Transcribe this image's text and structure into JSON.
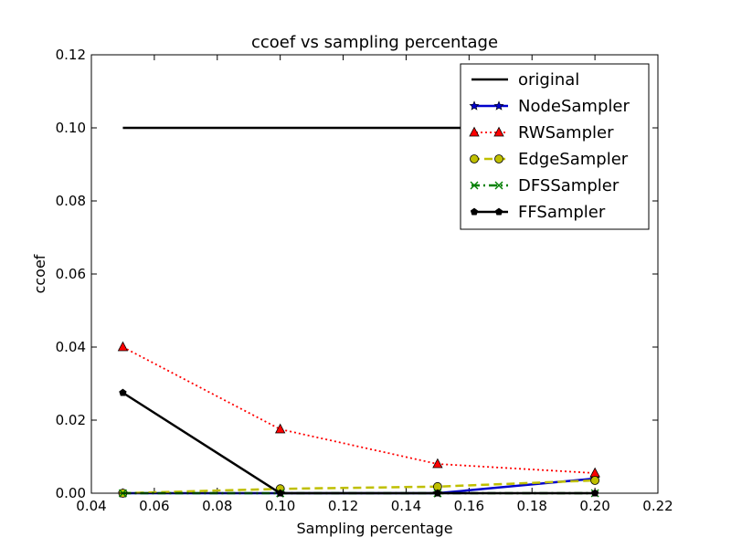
{
  "chart_data": {
    "type": "line",
    "title": "ccoef vs sampling percentage",
    "xlabel": "Sampling percentage",
    "ylabel": "ccoef",
    "xlim": [
      0.04,
      0.22
    ],
    "ylim": [
      0.0,
      0.12
    ],
    "xticks": [
      "0.04",
      "0.06",
      "0.08",
      "0.10",
      "0.12",
      "0.14",
      "0.16",
      "0.18",
      "0.20",
      "0.22"
    ],
    "yticks": [
      "0.00",
      "0.02",
      "0.04",
      "0.06",
      "0.08",
      "0.10",
      "0.12"
    ],
    "grid": false,
    "legend_position": "top-right",
    "series": [
      {
        "name": "original",
        "x": [
          0.05,
          0.2
        ],
        "y": [
          0.1,
          0.1
        ],
        "color": "#000000",
        "style": "solid",
        "marker": "none",
        "width": 2.5
      },
      {
        "name": "NodeSampler",
        "x": [
          0.05,
          0.1,
          0.15,
          0.2
        ],
        "y": [
          0.0,
          0.0,
          0.0,
          0.004
        ],
        "color": "#0000cc",
        "style": "solid",
        "marker": "star",
        "width": 2.5
      },
      {
        "name": "RWSampler",
        "x": [
          0.05,
          0.1,
          0.15,
          0.2
        ],
        "y": [
          0.04,
          0.0175,
          0.008,
          0.0055
        ],
        "color": "#ff0000",
        "style": "dotted",
        "marker": "triangle",
        "width": 1.8
      },
      {
        "name": "EdgeSampler",
        "x": [
          0.05,
          0.1,
          0.15,
          0.2
        ],
        "y": [
          0.0,
          0.0012,
          0.0018,
          0.0035
        ],
        "color": "#bfbf00",
        "style": "dashed",
        "marker": "circle",
        "width": 2.5
      },
      {
        "name": "DFSSampler",
        "x": [
          0.05,
          0.1,
          0.15,
          0.2
        ],
        "y": [
          0.0,
          0.0,
          0.0,
          0.0
        ],
        "color": "#008000",
        "style": "dashdot",
        "marker": "x",
        "width": 2.5
      },
      {
        "name": "FFSampler",
        "x": [
          0.05,
          0.1,
          0.15,
          0.2
        ],
        "y": [
          0.0275,
          0.0,
          0.0,
          0.0
        ],
        "color": "#000000",
        "style": "solid",
        "marker": "pentagon",
        "width": 2.5
      }
    ]
  }
}
